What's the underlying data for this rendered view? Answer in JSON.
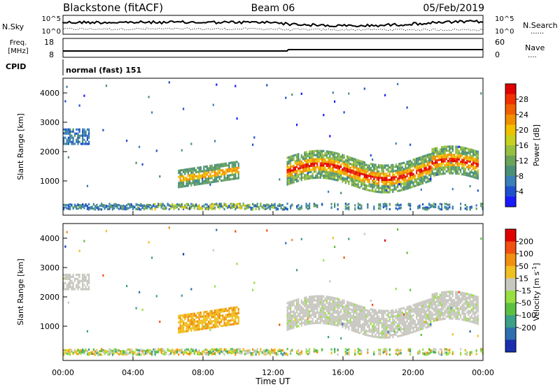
{
  "header": {
    "radar": "Blackstone (fitACF)",
    "beam": "Beam 06",
    "date": "05/Feb/2019"
  },
  "noise_panel": {
    "left_label": "N.Sky",
    "right_label": "N.Search",
    "right_style": "......",
    "ticks_left": [
      "10^5",
      "10^0"
    ],
    "ticks_right": [
      "10^5",
      "10^0"
    ]
  },
  "freq_panel": {
    "label_line1": "Freq.",
    "label_line2": "[MHz]",
    "ticks_left": [
      "18",
      "8"
    ],
    "right_label": "Nave",
    "right_style": "....",
    "ticks_right": [
      "60",
      "0"
    ]
  },
  "cpid": {
    "label": "CPID",
    "value": "normal (fast) 151"
  },
  "chart_data": [
    {
      "type": "heatmap",
      "quantity": "Power",
      "ylabel": "Slant Range [km]",
      "y_ticks": [
        "1000",
        "2000",
        "3000",
        "4000"
      ],
      "ylim": [
        0,
        4500
      ],
      "colorbar": {
        "label": "Power [dB]",
        "ticks": [
          "4",
          "8",
          "12",
          "16",
          "20",
          "24",
          "28"
        ],
        "range": [
          0,
          32
        ],
        "colors": [
          "#1a1aff",
          "#2050d0",
          "#3a7fb8",
          "#4a8f7a",
          "#6aa35a",
          "#98c040",
          "#c8d020",
          "#f0c000",
          "#f09000",
          "#f06000",
          "#f03000",
          "#e00000"
        ]
      }
    },
    {
      "type": "heatmap",
      "quantity": "Velocity",
      "ylabel": "Slant Range [km]",
      "y_ticks": [
        "1000",
        "2000",
        "3000",
        "4000"
      ],
      "ylim": [
        0,
        4500
      ],
      "colorbar": {
        "label": "Velocity [m s",
        "label_sup": "-1",
        "label_close": "]",
        "ticks": [
          "200",
          "100",
          "50",
          "15",
          "-15",
          "-50",
          "-100",
          "-200"
        ],
        "colors": [
          "#1a2fb0",
          "#2f6fb0",
          "#3aa088",
          "#5cc040",
          "#98e040",
          "#c8c8c0",
          "#f0c020",
          "#f09010",
          "#f05010",
          "#e00000"
        ]
      }
    }
  ],
  "time_axis": {
    "label": "Time UT",
    "ticks": [
      "00:00",
      "04:00",
      "08:00",
      "12:00",
      "16:00",
      "20:00",
      "00:00"
    ]
  }
}
